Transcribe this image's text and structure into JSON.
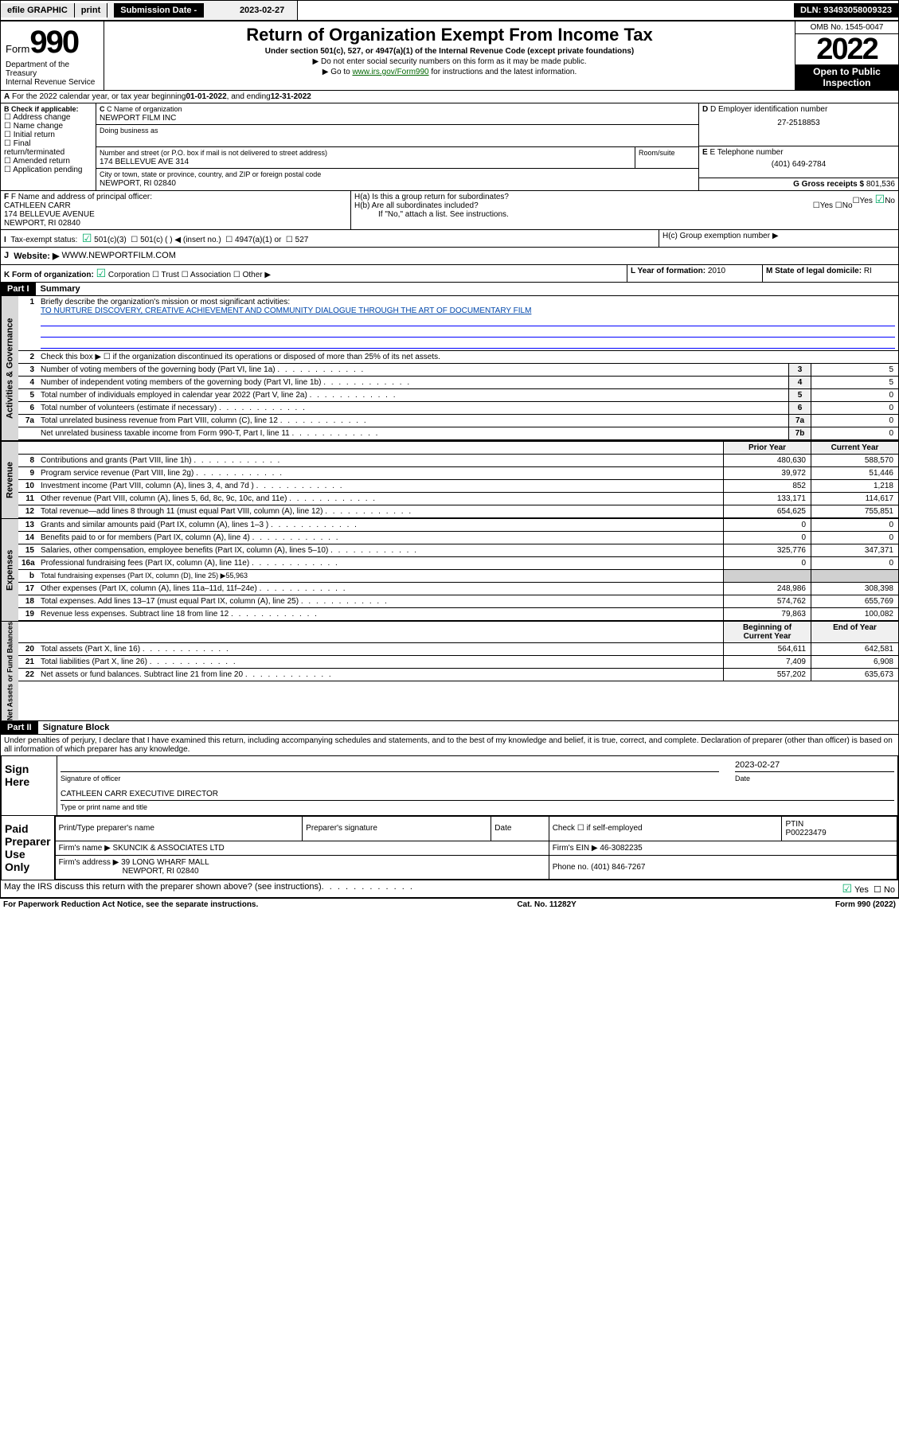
{
  "topbar": {
    "efile": "efile GRAPHIC",
    "print": "print",
    "subdate_lbl": "Submission Date - ",
    "subdate": "2023-02-27",
    "dln": "DLN: 93493058009323"
  },
  "header": {
    "form": "Form",
    "num": "990",
    "title": "Return of Organization Exempt From Income Tax",
    "sub": "Under section 501(c), 527, or 4947(a)(1) of the Internal Revenue Code (except private foundations)",
    "inst1": "▶ Do not enter social security numbers on this form as it may be made public.",
    "inst2": "▶ Go to ",
    "inst2link": "www.irs.gov/Form990",
    "inst2b": " for instructions and the latest information.",
    "dept": "Department of the Treasury",
    "irs": "Internal Revenue Service",
    "omb": "OMB No. 1545-0047",
    "year": "2022",
    "open": "Open to Public Inspection"
  },
  "A": {
    "txt": "For the 2022 calendar year, or tax year beginning ",
    "d1": "01-01-2022",
    "mid": " , and ending ",
    "d2": "12-31-2022"
  },
  "B": {
    "lbl": "B Check if applicable:",
    "items": [
      "Address change",
      "Name change",
      "Initial return",
      "Final return/terminated",
      "Amended return",
      "Application pending"
    ]
  },
  "C": {
    "lbl": "C Name of organization",
    "name": "NEWPORT FILM INC",
    "dba": "Doing business as",
    "street_lbl": "Number and street (or P.O. box if mail is not delivered to street address)",
    "room": "Room/suite",
    "street": "174 BELLEVUE AVE 314",
    "city_lbl": "City or town, state or province, country, and ZIP or foreign postal code",
    "city": "NEWPORT, RI  02840"
  },
  "D": {
    "lbl": "D Employer identification number",
    "val": "27-2518853"
  },
  "E": {
    "lbl": "E Telephone number",
    "val": "(401) 649-2784"
  },
  "G": {
    "lbl": "G Gross receipts $",
    "val": "801,536"
  },
  "F": {
    "lbl": "F Name and address of principal officer:",
    "name": "CATHLEEN CARR",
    "addr1": "174 BELLEVUE AVENUE",
    "addr2": "NEWPORT, RI  02840"
  },
  "H": {
    "a": "H(a)  Is this a group return for subordinates?",
    "b": "H(b)  Are all subordinates included?",
    "note": "If \"No,\" attach a list. See instructions.",
    "c": "H(c)  Group exemption number ▶",
    "yes": "Yes",
    "no": "No"
  },
  "I": {
    "lbl": "Tax-exempt status:",
    "opts": [
      "501(c)(3)",
      "501(c) (  ) ◀ (insert no.)",
      "4947(a)(1) or",
      "527"
    ]
  },
  "J": {
    "lbl": "Website: ▶",
    "val": "WWW.NEWPORTFILM.COM"
  },
  "K": {
    "lbl": "K Form of organization:",
    "opts": [
      "Corporation",
      "Trust",
      "Association",
      "Other ▶"
    ]
  },
  "L": {
    "lbl": "L Year of formation:",
    "val": "2010"
  },
  "M": {
    "lbl": "M State of legal domicile:",
    "val": "RI"
  },
  "part1": {
    "hdr": "Part I",
    "title": "Summary",
    "l1": "Briefly describe the organization's mission or most significant activities:",
    "mission": "TO NURTURE DISCOVERY, CREATIVE ACHIEVEMENT AND COMMUNITY DIALOGUE THROUGH THE ART OF DOCUMENTARY FILM",
    "l2": "Check this box ▶ ☐  if the organization discontinued its operations or disposed of more than 25% of its net assets.",
    "lines": [
      {
        "n": "3",
        "d": "Number of voting members of the governing body (Part VI, line 1a)",
        "box": "3",
        "v": "5"
      },
      {
        "n": "4",
        "d": "Number of independent voting members of the governing body (Part VI, line 1b)",
        "box": "4",
        "v": "5"
      },
      {
        "n": "5",
        "d": "Total number of individuals employed in calendar year 2022 (Part V, line 2a)",
        "box": "5",
        "v": "0"
      },
      {
        "n": "6",
        "d": "Total number of volunteers (estimate if necessary)",
        "box": "6",
        "v": "0"
      },
      {
        "n": "7a",
        "d": "Total unrelated business revenue from Part VIII, column (C), line 12",
        "box": "7a",
        "v": "0"
      },
      {
        "n": "",
        "d": "Net unrelated business taxable income from Form 990-T, Part I, line 11",
        "box": "7b",
        "v": "0"
      }
    ],
    "colhdr": {
      "prior": "Prior Year",
      "curr": "Current Year"
    },
    "rev": [
      {
        "n": "8",
        "d": "Contributions and grants (Part VIII, line 1h)",
        "p": "480,630",
        "c": "588,570"
      },
      {
        "n": "9",
        "d": "Program service revenue (Part VIII, line 2g)",
        "p": "39,972",
        "c": "51,446"
      },
      {
        "n": "10",
        "d": "Investment income (Part VIII, column (A), lines 3, 4, and 7d )",
        "p": "852",
        "c": "1,218"
      },
      {
        "n": "11",
        "d": "Other revenue (Part VIII, column (A), lines 5, 6d, 8c, 9c, 10c, and 11e)",
        "p": "133,171",
        "c": "114,617"
      },
      {
        "n": "12",
        "d": "Total revenue—add lines 8 through 11 (must equal Part VIII, column (A), line 12)",
        "p": "654,625",
        "c": "755,851"
      }
    ],
    "exp": [
      {
        "n": "13",
        "d": "Grants and similar amounts paid (Part IX, column (A), lines 1–3 )",
        "p": "0",
        "c": "0"
      },
      {
        "n": "14",
        "d": "Benefits paid to or for members (Part IX, column (A), line 4)",
        "p": "0",
        "c": "0"
      },
      {
        "n": "15",
        "d": "Salaries, other compensation, employee benefits (Part IX, column (A), lines 5–10)",
        "p": "325,776",
        "c": "347,371"
      },
      {
        "n": "16a",
        "d": "Professional fundraising fees (Part IX, column (A), line 11e)",
        "p": "0",
        "c": "0"
      },
      {
        "n": "b",
        "d": "Total fundraising expenses (Part IX, column (D), line 25) ▶55,963",
        "p": "",
        "c": "",
        "nobox": true
      },
      {
        "n": "17",
        "d": "Other expenses (Part IX, column (A), lines 11a–11d, 11f–24e)",
        "p": "248,986",
        "c": "308,398"
      },
      {
        "n": "18",
        "d": "Total expenses. Add lines 13–17 (must equal Part IX, column (A), line 25)",
        "p": "574,762",
        "c": "655,769"
      },
      {
        "n": "19",
        "d": "Revenue less expenses. Subtract line 18 from line 12",
        "p": "79,863",
        "c": "100,082"
      }
    ],
    "netlbl": {
      "beg": "Beginning of Current Year",
      "end": "End of Year"
    },
    "net": [
      {
        "n": "20",
        "d": "Total assets (Part X, line 16)",
        "p": "564,611",
        "c": "642,581"
      },
      {
        "n": "21",
        "d": "Total liabilities (Part X, line 26)",
        "p": "7,409",
        "c": "6,908"
      },
      {
        "n": "22",
        "d": "Net assets or fund balances. Subtract line 21 from line 20",
        "p": "557,202",
        "c": "635,673"
      }
    ]
  },
  "part2": {
    "hdr": "Part II",
    "title": "Signature Block",
    "decl": "Under penalties of perjury, I declare that I have examined this return, including accompanying schedules and statements, and to the best of my knowledge and belief, it is true, correct, and complete. Declaration of preparer (other than officer) is based on all information of which preparer has any knowledge.",
    "sign": "Sign Here",
    "sigoff": "Signature of officer",
    "date": "Date",
    "sigdate": "2023-02-27",
    "name": "CATHLEEN CARR  EXECUTIVE DIRECTOR",
    "namecap": "Type or print name and title",
    "paid": "Paid Preparer Use Only",
    "prephdr": [
      "Print/Type preparer's name",
      "Preparer's signature",
      "Date",
      "Check ☐ if self-employed",
      "PTIN"
    ],
    "ptin": "P00223479",
    "firm": "Firm's name   ▶",
    "firmname": "SKUNCIK & ASSOCIATES LTD",
    "ein": "Firm's EIN ▶",
    "einval": "46-3082235",
    "addr": "Firm's address ▶",
    "addrval": "39 LONG WHARF MALL",
    "addrval2": "NEWPORT, RI  02840",
    "phone": "Phone no.",
    "phoneval": "(401) 846-7267",
    "discuss": "May the IRS discuss this return with the preparer shown above? (see instructions)"
  },
  "footer": {
    "pra": "For Paperwork Reduction Act Notice, see the separate instructions.",
    "cat": "Cat. No. 11282Y",
    "form": "Form 990 (2022)"
  },
  "sections": {
    "ag": "Activities & Governance",
    "rev": "Revenue",
    "exp": "Expenses",
    "net": "Net Assets or Fund Balances"
  }
}
